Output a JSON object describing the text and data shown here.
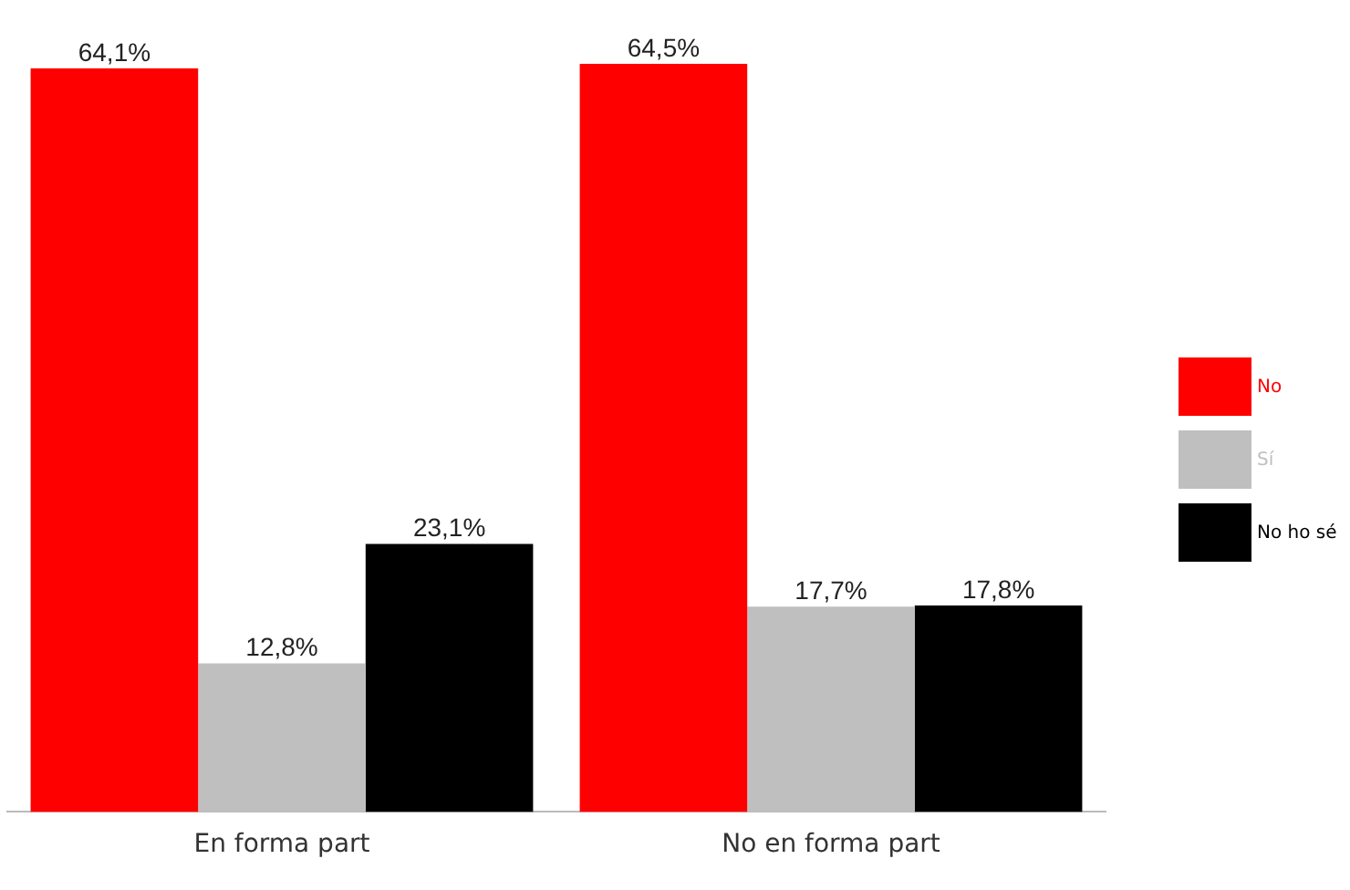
{
  "chart_data": {
    "type": "bar",
    "categories": [
      "En forma part",
      "No en forma part"
    ],
    "series": [
      {
        "name": "No",
        "color": "#ff0000",
        "values": [
          64.1,
          64.5
        ],
        "value_labels": [
          "64,1%",
          "64,5%"
        ]
      },
      {
        "name": "Sí",
        "color": "#bfbfbf",
        "values": [
          12.8,
          17.7
        ],
        "value_labels": [
          "12,8%",
          "17,7%"
        ]
      },
      {
        "name": "No ho sé",
        "color": "#000000",
        "values": [
          23.1,
          17.8
        ],
        "value_labels": [
          "23,1%",
          "17,8%"
        ]
      }
    ],
    "legend": "right",
    "grid": false
  }
}
